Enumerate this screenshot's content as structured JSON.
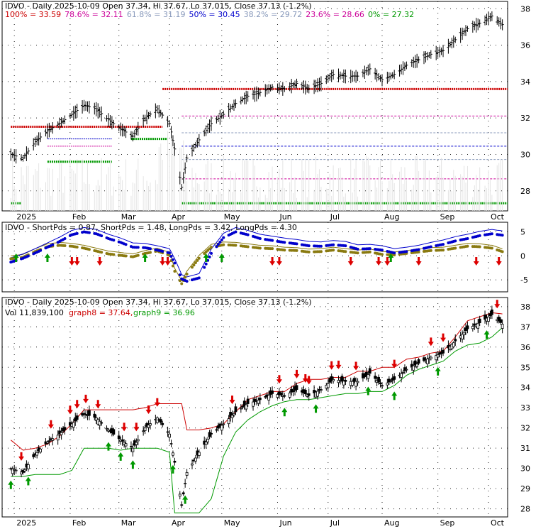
{
  "chart_data": [
    {
      "type": "line",
      "panel": "price-fibonacci",
      "title": "IDVO - Daily 2025-10-09 Open 37.34, Hi 37.67, Lo 37.015, Close 37.13 (-1.2%)",
      "fib_levels": [
        {
          "label": "100% = 33.59",
          "value": 33.59,
          "color": "#cc0000"
        },
        {
          "label": "78.6% = 32.11",
          "value": 32.11,
          "color": "#cc0099"
        },
        {
          "label": "61.8% = 31.19",
          "value": 31.19,
          "color": "#8899bb"
        },
        {
          "label": "50% = 30.45",
          "value": 30.45,
          "color": "#0000cc"
        },
        {
          "label": "38.2% = 29.72",
          "value": 29.72,
          "color": "#8899bb"
        },
        {
          "label": "23.6% = 28.66",
          "value": 28.66,
          "color": "#cc0099"
        },
        {
          "label": "0% = 27.32",
          "value": 27.32,
          "color": "#009900"
        }
      ],
      "ylim": [
        26.9,
        38.4
      ],
      "yticks": [
        28,
        30,
        32,
        34,
        36,
        38
      ],
      "xticks": [
        "2025",
        "Feb",
        "Mar",
        "Apr",
        "May",
        "Jun",
        "Jul",
        "Aug",
        "Sep",
        "Oct"
      ],
      "grid": true,
      "x": [
        "2024-12-31",
        "2025-01-07",
        "2025-01-14",
        "2025-01-21",
        "2025-01-28",
        "2025-02-04",
        "2025-02-11",
        "2025-02-18",
        "2025-02-25",
        "2025-03-04",
        "2025-03-11",
        "2025-03-18",
        "2025-03-25",
        "2025-04-01",
        "2025-04-04",
        "2025-04-08",
        "2025-04-11",
        "2025-04-18",
        "2025-04-25",
        "2025-05-02",
        "2025-05-09",
        "2025-05-16",
        "2025-05-23",
        "2025-05-30",
        "2025-06-06",
        "2025-06-13",
        "2025-06-20",
        "2025-06-27",
        "2025-07-04",
        "2025-07-11",
        "2025-07-18",
        "2025-07-25",
        "2025-08-01",
        "2025-08-08",
        "2025-08-15",
        "2025-08-22",
        "2025-08-29",
        "2025-09-05",
        "2025-09-12",
        "2025-09-19",
        "2025-09-26",
        "2025-10-03",
        "2025-10-09"
      ],
      "close": [
        30.0,
        29.8,
        30.7,
        31.3,
        31.7,
        32.2,
        32.7,
        32.5,
        31.9,
        31.4,
        31.0,
        32.0,
        32.5,
        31.7,
        30.3,
        28.2,
        29.8,
        30.8,
        31.7,
        32.2,
        32.8,
        33.2,
        33.4,
        33.7,
        33.6,
        33.9,
        33.6,
        33.9,
        34.4,
        34.3,
        34.3,
        34.7,
        34.1,
        34.4,
        34.9,
        35.2,
        35.5,
        35.7,
        36.3,
        36.9,
        37.2,
        37.6,
        37.13
      ]
    },
    {
      "type": "line",
      "panel": "oscillator",
      "title": "IDVO - ShortPds = 0.87, ShortPds = 1.48, LongPds = 3.42, LongPds = 4.30",
      "ylim": [
        -7.5,
        7.0
      ],
      "yticks": [
        -5,
        0,
        5
      ],
      "series": [
        {
          "name": "ShortPds",
          "value": 0.87,
          "color": "#8a7a10"
        },
        {
          "name": "ShortPds",
          "value": 1.48,
          "color": "#8a7a10"
        },
        {
          "name": "LongPds",
          "value": 3.42,
          "color": "#0000cc"
        },
        {
          "name": "LongPds",
          "value": 4.3,
          "color": "#0000cc"
        }
      ],
      "short_values": [
        -0.6,
        -0.3,
        0.9,
        1.9,
        2.2,
        2.0,
        1.6,
        1.0,
        0.4,
        0.1,
        -0.2,
        0.5,
        1.0,
        0.1,
        -3.2,
        -5.8,
        -3.8,
        -0.5,
        1.8,
        2.3,
        2.2,
        1.9,
        1.6,
        1.5,
        1.2,
        1.1,
        0.8,
        0.9,
        1.2,
        0.9,
        0.6,
        0.8,
        0.3,
        0.2,
        0.5,
        0.8,
        1.1,
        1.2,
        1.6,
        2.0,
        1.9,
        1.6,
        0.87
      ],
      "long_values": [
        -1.3,
        -0.5,
        0.6,
        1.8,
        3.0,
        4.4,
        5.0,
        4.6,
        3.6,
        2.8,
        1.8,
        1.7,
        1.2,
        0.6,
        -1.5,
        -4.8,
        -5.3,
        -4.6,
        0.5,
        3.8,
        5.0,
        4.4,
        3.6,
        3.2,
        2.8,
        2.5,
        2.1,
        2.0,
        2.3,
        2.1,
        1.4,
        1.5,
        1.2,
        0.6,
        0.9,
        1.3,
        1.9,
        2.4,
        3.1,
        3.6,
        4.2,
        4.6,
        4.3
      ],
      "signals_up": [
        "2025-01-03",
        "2025-01-21",
        "2025-03-18",
        "2025-04-22",
        "2025-05-01",
        "2025-08-06"
      ],
      "signals_down": [
        "2025-02-04",
        "2025-02-07",
        "2025-02-20",
        "2025-03-28",
        "2025-03-31",
        "2025-05-30",
        "2025-06-03",
        "2025-07-14",
        "2025-07-30",
        "2025-08-04",
        "2025-08-22",
        "2025-09-24",
        "2025-10-07"
      ]
    },
    {
      "type": "line",
      "panel": "price-stops",
      "title": "IDVO - Daily 2025-10-09 Open 37.34, Hi 37.67, Lo 37.015, Close 37.13 (-1.2%)",
      "volume_label": "Vol 11,839,100",
      "series": [
        {
          "name": "graph8",
          "value": 37.64,
          "color": "#cc0000"
        },
        {
          "name": "graph9",
          "value": 36.96,
          "color": "#009900"
        }
      ],
      "ylim": [
        27.6,
        38.45
      ],
      "yticks": [
        28,
        29,
        30,
        31,
        32,
        33,
        34,
        35,
        36,
        37,
        38
      ],
      "xticks": [
        "2025",
        "Feb",
        "Mar",
        "Apr",
        "May",
        "Jun",
        "Jul",
        "Aug",
        "Sep",
        "Oct"
      ],
      "grid": true,
      "stop_red": [
        31.4,
        30.9,
        31.0,
        31.2,
        31.6,
        32.2,
        32.9,
        32.9,
        32.9,
        32.9,
        32.9,
        33.0,
        33.2,
        33.2,
        33.2,
        33.2,
        31.9,
        31.9,
        32.0,
        32.2,
        32.8,
        33.4,
        33.6,
        33.8,
        33.8,
        34.2,
        34.4,
        34.4,
        34.5,
        34.5,
        34.8,
        34.8,
        35.0,
        35.0,
        35.4,
        35.5,
        35.7,
        35.8,
        36.5,
        37.3,
        37.5,
        37.7,
        37.64
      ],
      "stop_green": [
        29.6,
        29.6,
        29.7,
        29.7,
        29.7,
        29.9,
        31.0,
        31.0,
        31.0,
        30.9,
        31.0,
        31.0,
        31.0,
        30.8,
        27.8,
        27.8,
        27.8,
        27.8,
        28.5,
        30.6,
        31.8,
        32.4,
        32.8,
        33.1,
        33.3,
        33.4,
        33.4,
        33.5,
        33.6,
        33.7,
        33.7,
        33.8,
        33.8,
        34.1,
        34.6,
        34.9,
        35.1,
        35.3,
        35.8,
        36.1,
        36.2,
        36.5,
        36.96
      ],
      "signals_up": [
        "2024-12-31",
        "2025-01-10",
        "2025-02-25",
        "2025-03-04",
        "2025-03-11",
        "2025-04-03",
        "2025-04-10",
        "2025-06-06",
        "2025-06-24",
        "2025-07-24",
        "2025-08-08",
        "2025-09-02",
        "2025-09-30"
      ],
      "signals_down": [
        "2025-01-06",
        "2025-01-23",
        "2025-02-03",
        "2025-02-07",
        "2025-02-12",
        "2025-02-19",
        "2025-03-06",
        "2025-03-13",
        "2025-03-20",
        "2025-03-25",
        "2025-05-07",
        "2025-06-03",
        "2025-06-13",
        "2025-06-18",
        "2025-06-20",
        "2025-07-03",
        "2025-07-07",
        "2025-07-17",
        "2025-08-08",
        "2025-08-29",
        "2025-09-05",
        "2025-10-06"
      ]
    }
  ]
}
